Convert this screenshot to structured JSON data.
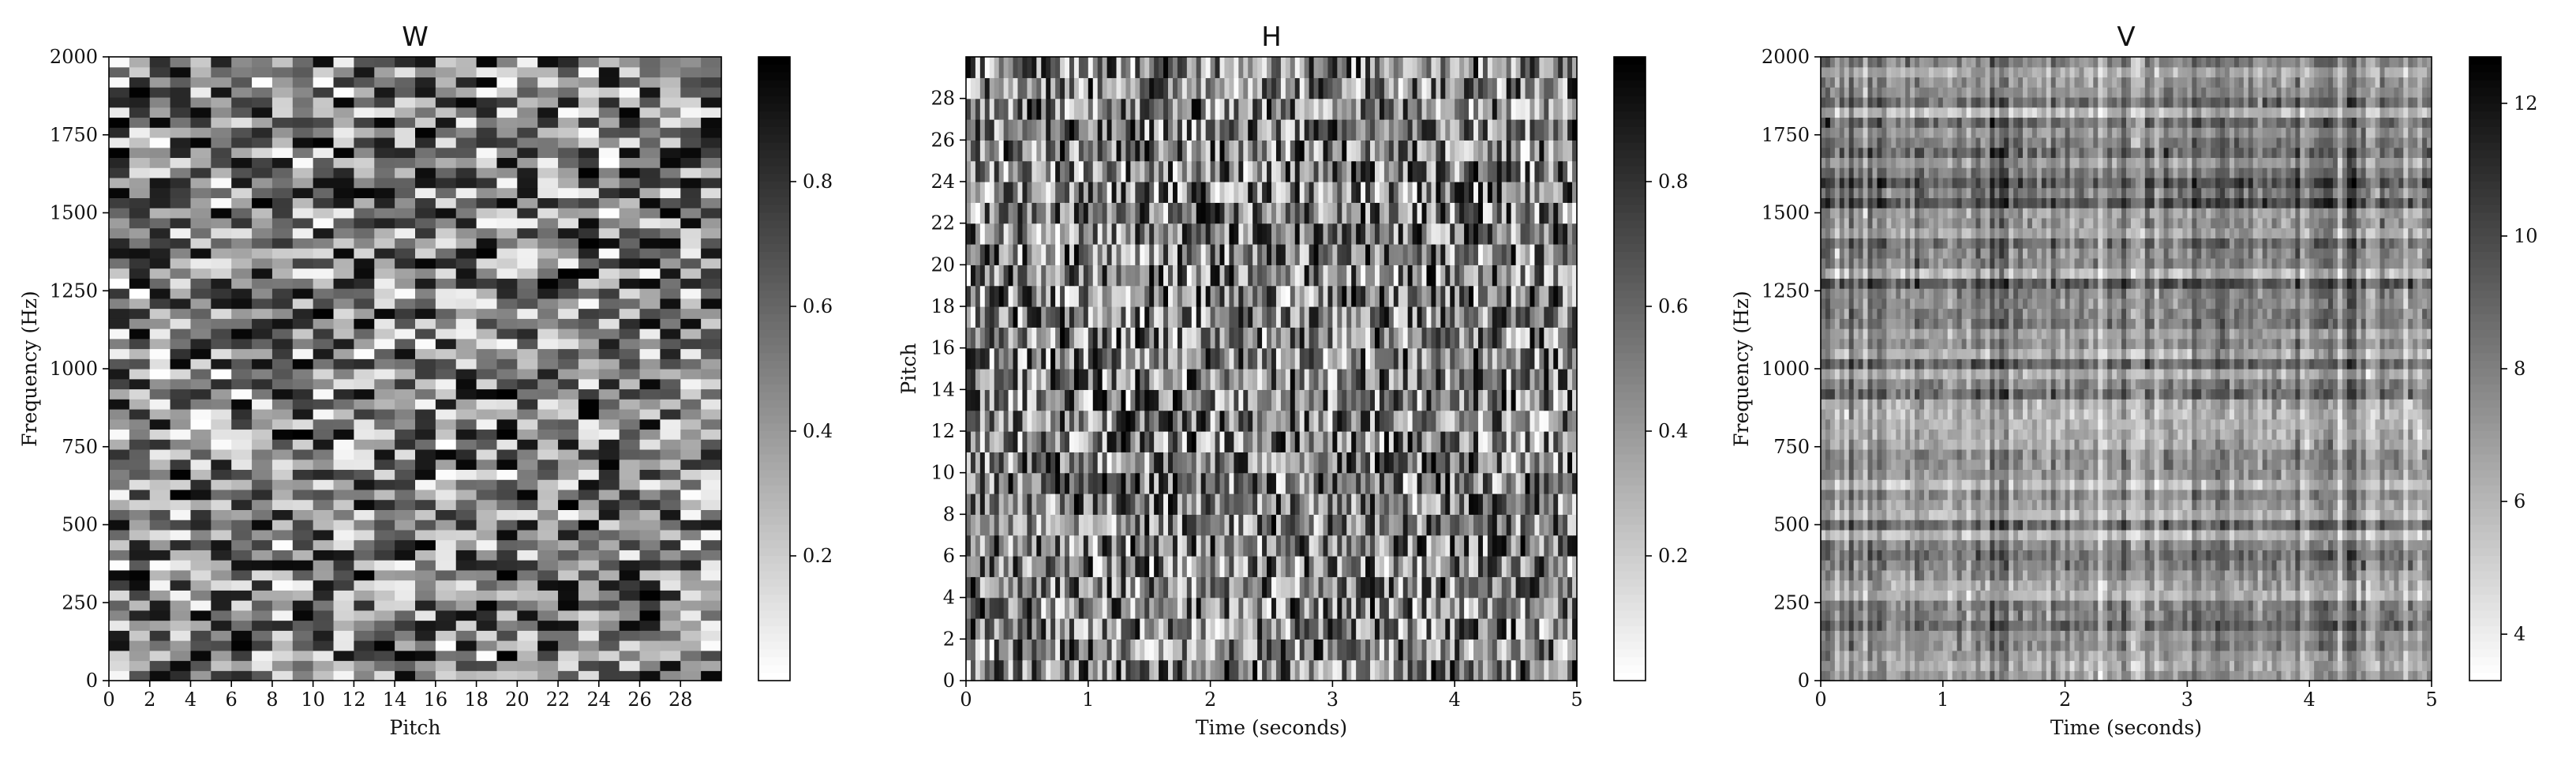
{
  "figure": {
    "background": "#ffffff"
  },
  "chart_data": [
    {
      "type": "heatmap",
      "title": "W",
      "xlabel": "Pitch",
      "ylabel": "Frequency (Hz)",
      "xlim": [
        0,
        30
      ],
      "ylim": [
        0,
        2000
      ],
      "xticks": [
        0,
        2,
        4,
        6,
        8,
        10,
        12,
        14,
        16,
        18,
        20,
        22,
        24,
        26,
        28
      ],
      "yticks": [
        0,
        250,
        500,
        750,
        1000,
        1250,
        1500,
        1750,
        2000
      ],
      "grid": false,
      "colormap": "gray_r",
      "colorbar": {
        "ticks": [
          0.2,
          0.4,
          0.6,
          0.8
        ],
        "vmin": 0.0,
        "vmax": 1.0
      },
      "cell_columns": 30,
      "cell_rows": 62,
      "values": "uniform random intensities in [0, 1], one per pitch column and frequency band"
    },
    {
      "type": "heatmap",
      "title": "H",
      "xlabel": "Time (seconds)",
      "ylabel": "Pitch",
      "xlim": [
        0,
        5
      ],
      "ylim": [
        0,
        30
      ],
      "xticks": [
        0,
        1,
        2,
        3,
        4,
        5
      ],
      "yticks": [
        0,
        2,
        4,
        6,
        8,
        10,
        12,
        14,
        16,
        18,
        20,
        22,
        24,
        26,
        28
      ],
      "grid": false,
      "colormap": "gray_r",
      "colorbar": {
        "ticks": [
          0.2,
          0.4,
          0.6,
          0.8
        ],
        "vmin": 0.0,
        "vmax": 1.0
      },
      "cell_columns": 130,
      "cell_rows": 30,
      "values": "uniform random intensities in [0, 1], one per pitch row and time frame"
    },
    {
      "type": "heatmap",
      "title": "V",
      "xlabel": "Time (seconds)",
      "ylabel": "Frequency (Hz)",
      "xlim": [
        0,
        5
      ],
      "ylim": [
        0,
        2000
      ],
      "xticks": [
        0,
        1,
        2,
        3,
        4,
        5
      ],
      "yticks": [
        0,
        250,
        500,
        750,
        1000,
        1250,
        1500,
        1750,
        2000
      ],
      "grid": false,
      "colormap": "gray_r",
      "colorbar": {
        "ticks": [
          4,
          6,
          8,
          10,
          12
        ],
        "vmin": 3.3,
        "vmax": 12.7
      },
      "cell_columns": 130,
      "cell_rows": 62,
      "values": "product of W and H; smooth texture with horizontal frequency bands and vertical time streaks"
    }
  ]
}
